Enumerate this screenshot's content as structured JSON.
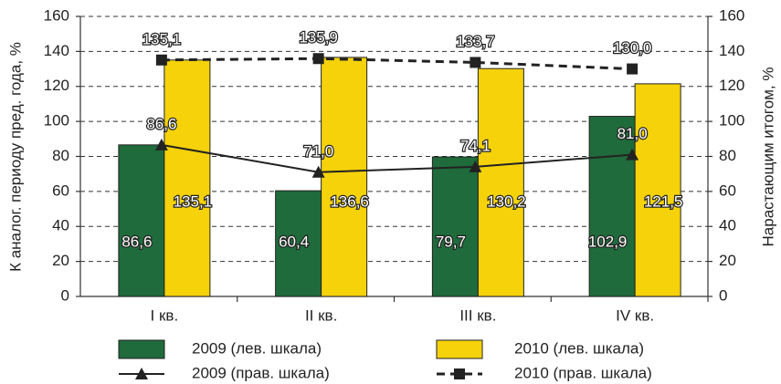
{
  "chart_data": {
    "type": "bar",
    "categories": [
      "I кв.",
      "II кв.",
      "III кв.",
      "IV кв."
    ],
    "ylabel": "К аналог. периоду пред. года, %",
    "y2label": "Нарастающим итогом, %",
    "ylim": [
      0,
      160
    ],
    "yticks": [
      0,
      20,
      40,
      60,
      80,
      100,
      120,
      140,
      160
    ],
    "y2lim": [
      0,
      160
    ],
    "y2ticks": [
      0,
      20,
      40,
      60,
      80,
      100,
      120,
      140,
      160
    ],
    "grid": true,
    "series": [
      {
        "name": "2009 (лев. шкала)",
        "type": "bar",
        "color": "#1f6b3b",
        "values": [
          86.6,
          60.4,
          79.7,
          102.9
        ],
        "value_labels": [
          "86,6",
          "60,4",
          "79,7",
          "102,9"
        ]
      },
      {
        "name": "2010 (лев. шкала)",
        "type": "bar",
        "color": "#f5d20a",
        "values": [
          135.1,
          136.6,
          130.2,
          121.5
        ],
        "value_labels": [
          "135,1",
          "136,6",
          "130,2",
          "121,5"
        ]
      },
      {
        "name": "2009 (прав. шкала)",
        "type": "line",
        "axis": "y2",
        "color": "#222222",
        "marker": "triangle",
        "dashed": false,
        "values": [
          86.6,
          71.0,
          74.1,
          81.0
        ],
        "value_labels": [
          "86,6",
          "71,0",
          "74,1",
          "81,0"
        ]
      },
      {
        "name": "2010 (прав. шкала)",
        "type": "line",
        "axis": "y2",
        "color": "#222222",
        "marker": "square",
        "dashed": true,
        "values": [
          135.1,
          135.9,
          133.7,
          130.0
        ],
        "value_labels": [
          "135,1",
          "135,9",
          "133,7",
          "130,0"
        ]
      }
    ]
  }
}
